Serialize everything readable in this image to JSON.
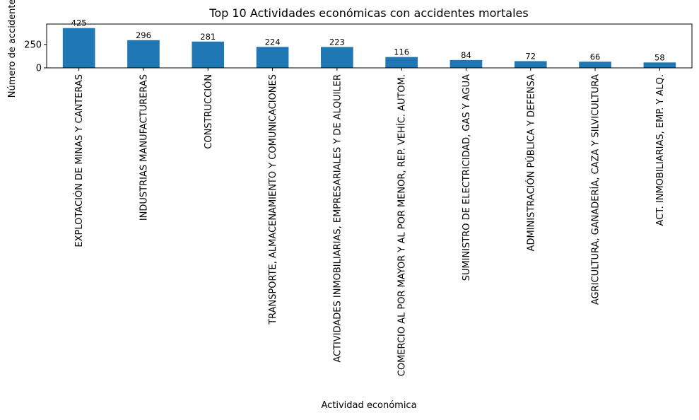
{
  "chart_data": {
    "type": "bar",
    "title": "Top 10 Actividades económicas con accidentes mortales",
    "xlabel": "Actividad económica",
    "ylabel": "Número de accidentes",
    "ylim": [
      0,
      468
    ],
    "yticks": [
      0,
      250
    ],
    "grid": false,
    "bar_color": "#1f77b4",
    "categories": [
      "EXPLOTACIÓN DE MINAS Y CANTERAS",
      "INDUSTRIAS MANUFACTURERAS",
      "CONSTRUCCIÓN",
      "TRANSPORTE, ALMACENAMIENTO Y COMUNICACIONES",
      "ACTIVIDADES INMOBILIARIAS, EMPRESARIALES Y DE ALQUILER",
      "COMERCIO AL POR MAYOR Y AL POR MENOR, REP. VEHÍC. AUTOM.",
      "SUMINISTRO DE ELECTRICIDAD, GAS Y AGUA",
      "ADMINISTRACIÓN PÚBLICA Y DEFENSA",
      "AGRICULTURA, GANADERÍA, CAZA Y SILVICULTURA",
      "ACT. INMOBILIARIAS, EMP. Y ALQ."
    ],
    "values": [
      425,
      296,
      281,
      224,
      223,
      116,
      84,
      72,
      66,
      58
    ]
  }
}
